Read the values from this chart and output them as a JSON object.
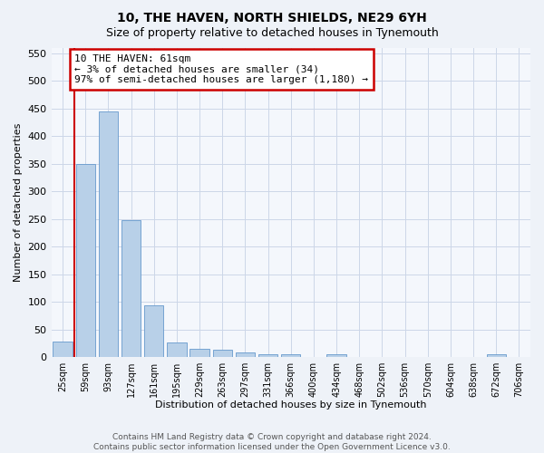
{
  "title": "10, THE HAVEN, NORTH SHIELDS, NE29 6YH",
  "subtitle": "Size of property relative to detached houses in Tynemouth",
  "xlabel": "Distribution of detached houses by size in Tynemouth",
  "ylabel": "Number of detached properties",
  "categories": [
    "25sqm",
    "59sqm",
    "93sqm",
    "127sqm",
    "161sqm",
    "195sqm",
    "229sqm",
    "263sqm",
    "297sqm",
    "331sqm",
    "366sqm",
    "400sqm",
    "434sqm",
    "468sqm",
    "502sqm",
    "536sqm",
    "570sqm",
    "604sqm",
    "638sqm",
    "672sqm",
    "706sqm"
  ],
  "values": [
    28,
    350,
    445,
    248,
    93,
    26,
    15,
    13,
    9,
    5,
    5,
    0,
    5,
    0,
    0,
    0,
    0,
    0,
    0,
    5,
    0
  ],
  "bar_color": "#b8d0e8",
  "bar_edge_color": "#6699cc",
  "vline_x": 0.5,
  "vline_color": "#cc0000",
  "annotation_text": "10 THE HAVEN: 61sqm\n← 3% of detached houses are smaller (34)\n97% of semi-detached houses are larger (1,180) →",
  "annotation_box_facecolor": "#ffffff",
  "annotation_box_edgecolor": "#cc0000",
  "ylim": [
    0,
    560
  ],
  "yticks": [
    0,
    50,
    100,
    150,
    200,
    250,
    300,
    350,
    400,
    450,
    500,
    550
  ],
  "footer_text": "Contains HM Land Registry data © Crown copyright and database right 2024.\nContains public sector information licensed under the Open Government Licence v3.0.",
  "fig_bg_color": "#eef2f8",
  "plot_bg_color": "#f4f7fc",
  "grid_color": "#ccd6e8",
  "title_fontsize": 10,
  "subtitle_fontsize": 9,
  "ylabel_fontsize": 8,
  "xlabel_fontsize": 8,
  "tick_fontsize": 8,
  "xtick_fontsize": 7,
  "footer_fontsize": 6.5,
  "annotation_fontsize": 8
}
